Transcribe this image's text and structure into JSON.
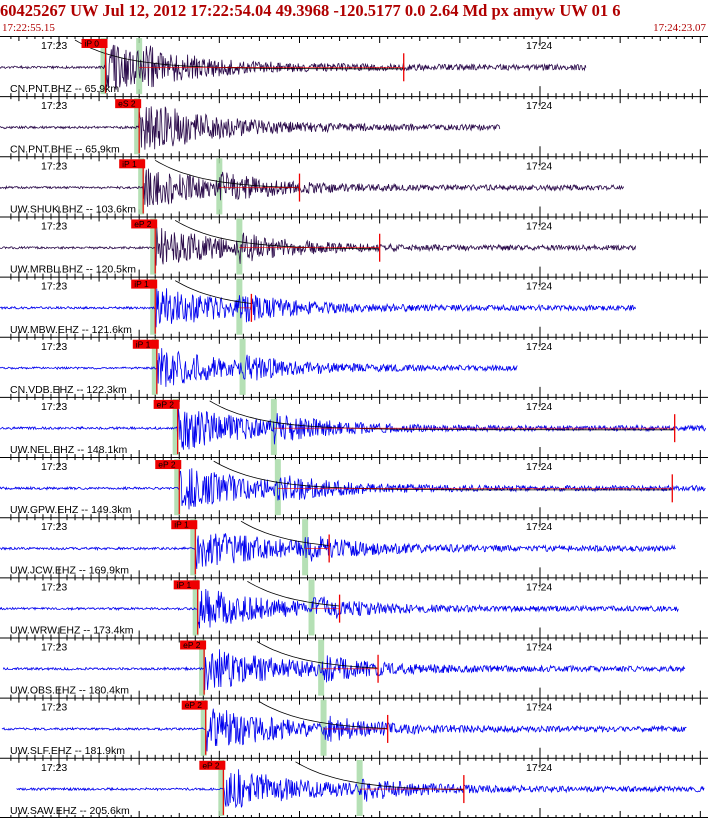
{
  "header": {
    "title": "60425267 UW Jul 12, 2012 17:22:54.04   49.3968 -120.5177  0.0 2.64 Md px amyw UW 01   6",
    "start_time": "17:22:55.15",
    "end_time": "17:24:23.07"
  },
  "chart_data": {
    "type": "line",
    "title": "60425267 UW Jul 12, 2012 17:22:54.04   49.3968 -120.5177  0.0 2.64 Md px amyw UW 01   6",
    "x_range": [
      "17:22:55.15",
      "17:24:23.07"
    ],
    "tick_labels": [
      "17:23",
      "17:24"
    ],
    "colors": {
      "broadband": "#2a0a4a",
      "short_period": "#0000ee",
      "pick": "#ee0000",
      "p_window": "#a8dba8",
      "coda": "#000000",
      "axis": "#000000"
    },
    "traces": [
      {
        "label": "CN.PNT.BHZ -- 65.9km",
        "pick": "iP 0",
        "color": "#2a0a4a",
        "p_s": 5.8,
        "s_s": 10.0,
        "coda_s": 43.0,
        "amp": 0.95
      },
      {
        "label": "CN.PNT.BHE -- 65.9km",
        "pick": "eS 2",
        "color": "#2a0a4a",
        "p_s": 10.0,
        "s_s": 10.0,
        "coda_s": 0,
        "amp": 0.9
      },
      {
        "label": "UW.SHUK.BHZ -- 103.6km",
        "pick": "iP 1",
        "color": "#2a0a4a",
        "p_s": 10.5,
        "s_s": 20.0,
        "coda_s": 30.0,
        "amp": 0.85
      },
      {
        "label": "UW.MRBL.BHZ -- 120.5km",
        "pick": "eP 2",
        "color": "#2a0a4a",
        "p_s": 12.0,
        "s_s": 22.5,
        "coda_s": 40.0,
        "amp": 0.85
      },
      {
        "label": "UW.MBW.EHZ -- 121.6km",
        "pick": "iP 1",
        "color": "#0000ee",
        "p_s": 12.0,
        "s_s": 22.5,
        "coda_s": 24.0,
        "amp": 0.85
      },
      {
        "label": "CN.VDB.EHZ -- 122.3km",
        "pick": "iP 1",
        "color": "#0000ee",
        "p_s": 12.2,
        "s_s": 22.9,
        "coda_s": 0,
        "amp": 0.8
      },
      {
        "label": "UW.NEL.EHZ -- 148.1km",
        "pick": "eP 2",
        "color": "#0000ee",
        "p_s": 14.8,
        "s_s": 26.8,
        "coda_s": 76.8,
        "amp": 0.9
      },
      {
        "label": "UW.GPW.EHZ -- 149.3km",
        "pick": "eP 2",
        "color": "#0000ee",
        "p_s": 15.0,
        "s_s": 27.3,
        "coda_s": 76.5,
        "amp": 0.9
      },
      {
        "label": "UW.JCW.EHZ -- 169.9km",
        "pick": "iP 1",
        "color": "#0000ee",
        "p_s": 17.0,
        "s_s": 30.7,
        "coda_s": 33.7,
        "amp": 0.9
      },
      {
        "label": "UW.WRW.EHZ -- 173.4km",
        "pick": "iP 1",
        "color": "#0000ee",
        "p_s": 17.3,
        "s_s": 31.5,
        "coda_s": 35.0,
        "amp": 0.85
      },
      {
        "label": "UW.OBS.EHZ -- 180.4km",
        "pick": "eP 2",
        "color": "#0000ee",
        "p_s": 18.1,
        "s_s": 32.7,
        "coda_s": 39.8,
        "amp": 0.9
      },
      {
        "label": "UW.SLF.EHZ -- 181.9km",
        "pick": "eP 2",
        "color": "#0000ee",
        "p_s": 18.3,
        "s_s": 33.0,
        "coda_s": 41.0,
        "amp": 0.9
      },
      {
        "label": "UW.SAW.EHZ -- 205.6km",
        "pick": "eP 2",
        "color": "#0000ee",
        "p_s": 20.5,
        "s_s": 37.5,
        "coda_s": 50.5,
        "amp": 0.9
      }
    ]
  }
}
